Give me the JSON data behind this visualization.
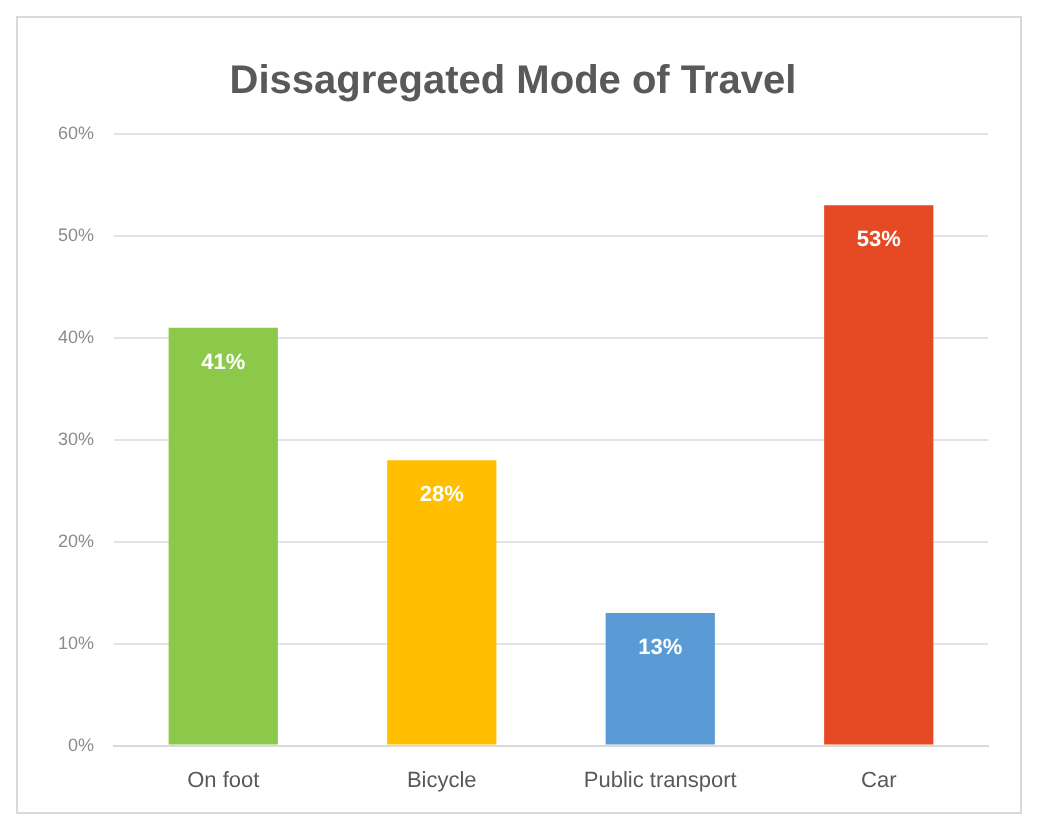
{
  "chart_data": {
    "type": "bar",
    "title": "Dissagregated Mode of Travel",
    "categories": [
      "On foot",
      "Bicycle",
      "Public transport",
      "Car"
    ],
    "values": [
      41,
      28,
      13,
      53
    ],
    "colors": [
      "#8cc94a",
      "#ffbf00",
      "#5b9bd5",
      "#e64a24"
    ],
    "value_labels": [
      "41%",
      "28%",
      "13%",
      "53%"
    ],
    "ylim": [
      0,
      60
    ],
    "yticks": [
      {
        "value": 0,
        "label": "0%"
      },
      {
        "value": 10,
        "label": "10%"
      },
      {
        "value": 20,
        "label": "20%"
      },
      {
        "value": 30,
        "label": "30%"
      },
      {
        "value": 40,
        "label": "40%"
      },
      {
        "value": 50,
        "label": "50%"
      },
      {
        "value": 60,
        "label": "60%"
      }
    ],
    "grid": "y",
    "legend": false
  }
}
